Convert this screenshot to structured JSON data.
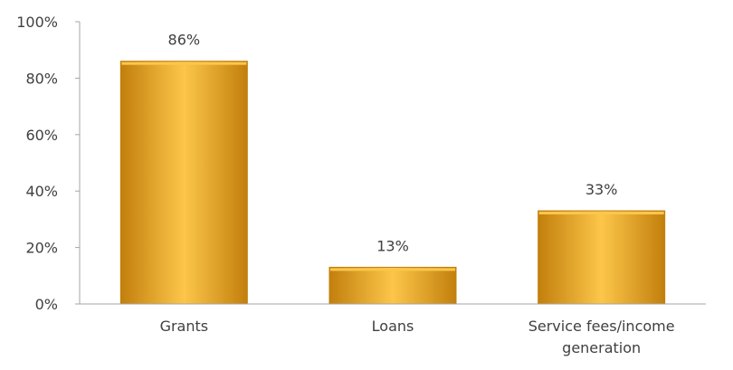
{
  "chart_data": {
    "type": "bar",
    "title": "",
    "xlabel": "",
    "ylabel": "",
    "categories": [
      "Grants",
      "Loans",
      "Service fees/income generation"
    ],
    "category_label_lines": [
      [
        "Grants"
      ],
      [
        "Loans"
      ],
      [
        "Service fees/income",
        "generation"
      ]
    ],
    "values": [
      86,
      13,
      33
    ],
    "value_labels": [
      "86%",
      "13%",
      "33%"
    ],
    "ylim": [
      0,
      100
    ],
    "yticks": [
      0,
      20,
      40,
      60,
      80,
      100
    ],
    "ytick_labels": [
      "0%",
      "20%",
      "40%",
      "60%",
      "80%",
      "100%"
    ],
    "grid": false,
    "legend": "none",
    "colors": {
      "bar_fill": "#F9A825",
      "bar_highlight": "#FCC64A",
      "bar_shadow": "#C27F0C",
      "axis": "#A6A6A6",
      "text": "#404040"
    }
  }
}
